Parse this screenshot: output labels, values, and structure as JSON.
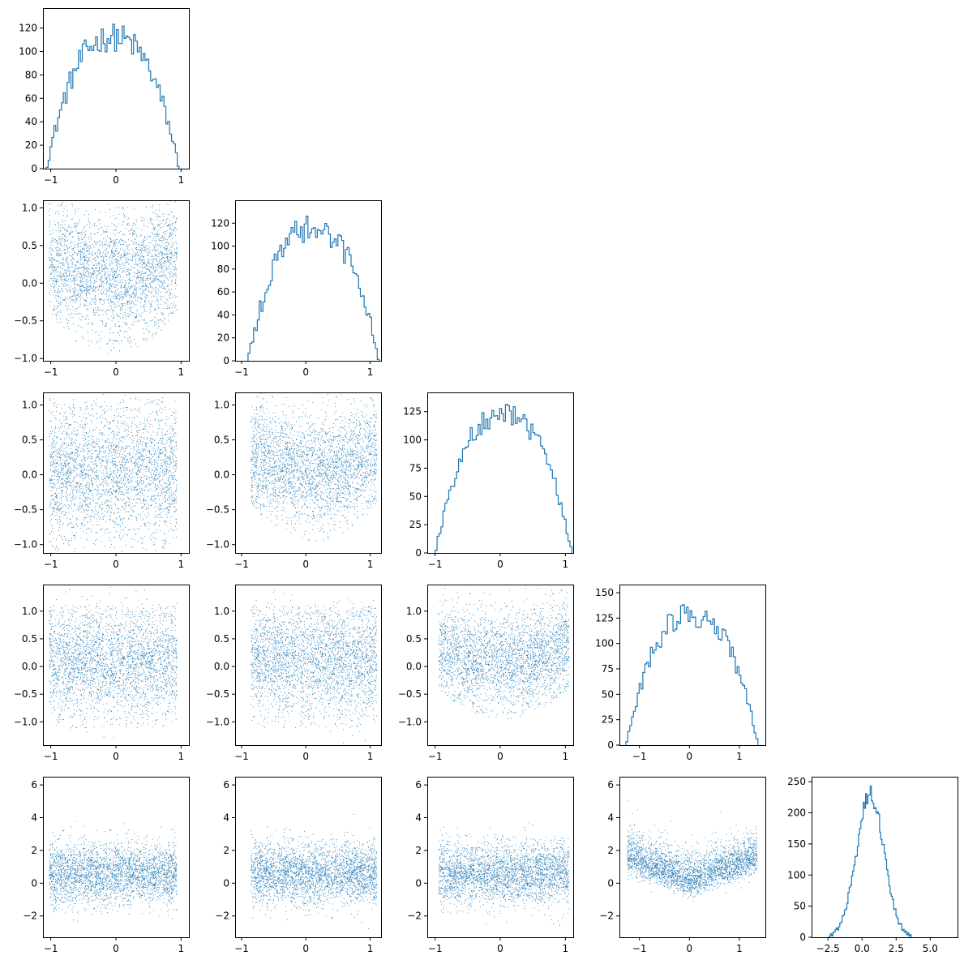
{
  "colors": {
    "series": "#1f77b4",
    "frame": "#000000"
  },
  "chart_data": [
    {
      "type": "histogram",
      "row": 0,
      "col": 0,
      "xlim": [
        -1.12,
        1.12
      ],
      "ylim": [
        0,
        137
      ],
      "xticks": [
        -1,
        0,
        1
      ],
      "xtick_labels": [
        "−1",
        "0",
        "1"
      ],
      "yticks": [
        0,
        20,
        40,
        60,
        80,
        100,
        120
      ],
      "ytick_labels": [
        "0",
        "20",
        "40",
        "60",
        "80",
        "100",
        "120"
      ],
      "dist": {
        "center": -0.05,
        "halfwidth": 1.02,
        "peak": 112,
        "noise": 12
      }
    },
    {
      "type": "scatter",
      "row": 1,
      "col": 0,
      "xlim": [
        -1.12,
        1.12
      ],
      "ylim": [
        -1.03,
        1.1
      ],
      "xticks": [
        -1,
        0,
        1
      ],
      "xtick_labels": [
        "−1",
        "0",
        "1"
      ],
      "yticks": [
        -1,
        -0.5,
        0,
        0.5,
        1
      ],
      "ytick_labels": [
        "−1.0",
        "−0.5",
        "0.0",
        "0.5",
        "1.0"
      ],
      "points": {
        "n": 3000,
        "x_center": -0.05,
        "x_half": 0.98,
        "y_center": 0.1,
        "y_spread": 0.48,
        "mode": "cup"
      }
    },
    {
      "type": "histogram",
      "row": 1,
      "col": 1,
      "xlim": [
        -1.1,
        1.17
      ],
      "ylim": [
        0,
        140
      ],
      "xticks": [
        -1,
        0,
        1
      ],
      "xtick_labels": [
        "−1",
        "0",
        "1"
      ],
      "yticks": [
        0,
        20,
        40,
        60,
        80,
        100,
        120
      ],
      "ytick_labels": [
        "0",
        "20",
        "40",
        "60",
        "80",
        "100",
        "120"
      ],
      "dist": {
        "center": 0.12,
        "halfwidth": 1.02,
        "peak": 115,
        "noise": 12
      }
    },
    {
      "type": "scatter",
      "row": 2,
      "col": 0,
      "xlim": [
        -1.12,
        1.12
      ],
      "ylim": [
        -1.12,
        1.18
      ],
      "xticks": [
        -1,
        0,
        1
      ],
      "xtick_labels": [
        "−1",
        "0",
        "1"
      ],
      "yticks": [
        -1,
        -0.5,
        0,
        0.5,
        1
      ],
      "ytick_labels": [
        "−1.0",
        "−0.5",
        "0.0",
        "0.5",
        "1.0"
      ],
      "points": {
        "n": 3000,
        "x_center": -0.05,
        "x_half": 0.98,
        "y_center": 0.05,
        "y_spread": 0.48,
        "mode": "disc"
      }
    },
    {
      "type": "scatter",
      "row": 2,
      "col": 1,
      "xlim": [
        -1.1,
        1.17
      ],
      "ylim": [
        -1.12,
        1.18
      ],
      "xticks": [
        -1,
        0,
        1
      ],
      "xtick_labels": [
        "−1",
        "0",
        "1"
      ],
      "yticks": [
        -1,
        -0.5,
        0,
        0.5,
        1
      ],
      "ytick_labels": [
        "−1.0",
        "−0.5",
        "0.0",
        "0.5",
        "1.0"
      ],
      "points": {
        "n": 3000,
        "x_center": 0.12,
        "x_half": 0.98,
        "y_center": 0.05,
        "y_spread": 0.48,
        "mode": "cup"
      }
    },
    {
      "type": "histogram",
      "row": 2,
      "col": 2,
      "xlim": [
        -1.12,
        1.12
      ],
      "ylim": [
        0,
        142
      ],
      "xticks": [
        -1,
        0,
        1
      ],
      "xtick_labels": [
        "−1",
        "0",
        "1"
      ],
      "yticks": [
        0,
        25,
        50,
        75,
        100,
        125
      ],
      "ytick_labels": [
        "0",
        "25",
        "50",
        "75",
        "100",
        "125"
      ],
      "dist": {
        "center": 0.05,
        "halfwidth": 1.05,
        "peak": 122,
        "noise": 10
      }
    },
    {
      "type": "scatter",
      "row": 3,
      "col": 0,
      "xlim": [
        -1.12,
        1.12
      ],
      "ylim": [
        -1.42,
        1.48
      ],
      "xticks": [
        -1,
        0,
        1
      ],
      "xtick_labels": [
        "−1",
        "0",
        "1"
      ],
      "yticks": [
        -1,
        -0.5,
        0,
        0.5,
        1
      ],
      "ytick_labels": [
        "−1.0",
        "−0.5",
        "0.0",
        "0.5",
        "1.0"
      ],
      "points": {
        "n": 3000,
        "x_center": -0.05,
        "x_half": 0.98,
        "y_center": 0.1,
        "y_spread": 0.52,
        "mode": "disc"
      }
    },
    {
      "type": "scatter",
      "row": 3,
      "col": 1,
      "xlim": [
        -1.1,
        1.17
      ],
      "ylim": [
        -1.42,
        1.48
      ],
      "xticks": [
        -1,
        0,
        1
      ],
      "xtick_labels": [
        "−1",
        "0",
        "1"
      ],
      "yticks": [
        -1,
        -0.5,
        0,
        0.5,
        1
      ],
      "ytick_labels": [
        "−1.0",
        "−0.5",
        "0.0",
        "0.5",
        "1.0"
      ],
      "points": {
        "n": 3000,
        "x_center": 0.12,
        "x_half": 0.98,
        "y_center": 0.1,
        "y_spread": 0.52,
        "mode": "disc"
      }
    },
    {
      "type": "scatter",
      "row": 3,
      "col": 2,
      "xlim": [
        -1.12,
        1.12
      ],
      "ylim": [
        -1.42,
        1.48
      ],
      "xticks": [
        -1,
        0,
        1
      ],
      "xtick_labels": [
        "−1",
        "0",
        "1"
      ],
      "yticks": [
        -1,
        -0.5,
        0,
        0.5,
        1
      ],
      "ytick_labels": [
        "−1.0",
        "−0.5",
        "0.0",
        "0.5",
        "1.0"
      ],
      "points": {
        "n": 3000,
        "x_center": 0.05,
        "x_half": 1.0,
        "y_center": 0.1,
        "y_spread": 0.52,
        "mode": "cup"
      }
    },
    {
      "type": "histogram",
      "row": 3,
      "col": 3,
      "xlim": [
        -1.4,
        1.52
      ],
      "ylim": [
        0,
        158
      ],
      "xticks": [
        -1,
        0,
        1
      ],
      "xtick_labels": [
        "−1",
        "0",
        "1"
      ],
      "yticks": [
        0,
        25,
        50,
        75,
        100,
        125,
        150
      ],
      "ytick_labels": [
        "0",
        "25",
        "50",
        "75",
        "100",
        "125",
        "150"
      ],
      "dist": {
        "center": 0.05,
        "halfwidth": 1.32,
        "peak": 128,
        "noise": 12
      }
    },
    {
      "type": "scatter",
      "row": 4,
      "col": 0,
      "xlim": [
        -1.12,
        1.12
      ],
      "ylim": [
        -3.3,
        6.5
      ],
      "xticks": [
        -1,
        0,
        1
      ],
      "xtick_labels": [
        "−1",
        "0",
        "1"
      ],
      "yticks": [
        -2,
        0,
        2,
        4,
        6
      ],
      "ytick_labels": [
        "−2",
        "0",
        "2",
        "4",
        "6"
      ],
      "points": {
        "n": 3000,
        "x_center": -0.05,
        "x_half": 0.98,
        "y_center": 0.6,
        "y_spread": 0.95,
        "mode": "gauss"
      }
    },
    {
      "type": "scatter",
      "row": 4,
      "col": 1,
      "xlim": [
        -1.1,
        1.17
      ],
      "ylim": [
        -3.3,
        6.5
      ],
      "xticks": [
        -1,
        0,
        1
      ],
      "xtick_labels": [
        "−1",
        "0",
        "1"
      ],
      "yticks": [
        -2,
        0,
        2,
        4,
        6
      ],
      "ytick_labels": [
        "−2",
        "0",
        "2",
        "4",
        "6"
      ],
      "points": {
        "n": 3000,
        "x_center": 0.12,
        "x_half": 0.98,
        "y_center": 0.6,
        "y_spread": 0.95,
        "mode": "gauss"
      }
    },
    {
      "type": "scatter",
      "row": 4,
      "col": 2,
      "xlim": [
        -1.12,
        1.12
      ],
      "ylim": [
        -3.3,
        6.5
      ],
      "xticks": [
        -1,
        0,
        1
      ],
      "xtick_labels": [
        "−1",
        "0",
        "1"
      ],
      "yticks": [
        -2,
        0,
        2,
        4,
        6
      ],
      "ytick_labels": [
        "−2",
        "0",
        "2",
        "4",
        "6"
      ],
      "points": {
        "n": 3000,
        "x_center": 0.05,
        "x_half": 1.0,
        "y_center": 0.6,
        "y_spread": 0.95,
        "mode": "gauss"
      }
    },
    {
      "type": "scatter",
      "row": 4,
      "col": 3,
      "xlim": [
        -1.4,
        1.52
      ],
      "ylim": [
        -3.3,
        6.5
      ],
      "xticks": [
        -1,
        0,
        1
      ],
      "xtick_labels": [
        "−1",
        "0",
        "1"
      ],
      "yticks": [
        -2,
        0,
        2,
        4,
        6
      ],
      "ytick_labels": [
        "−2",
        "0",
        "2",
        "4",
        "6"
      ],
      "points": {
        "n": 3000,
        "x_center": 0.05,
        "x_half": 1.3,
        "y_center": 0.5,
        "y_spread": 0.85,
        "mode": "vshape"
      }
    },
    {
      "type": "histogram",
      "row": 4,
      "col": 4,
      "xlim": [
        -3.7,
        7.0
      ],
      "ylim": [
        0,
        258
      ],
      "xticks": [
        -2.5,
        0,
        2.5,
        5
      ],
      "xtick_labels": [
        "−2.5",
        "0.0",
        "2.5",
        "5.0"
      ],
      "yticks": [
        0,
        50,
        100,
        150,
        200,
        250
      ],
      "ytick_labels": [
        "0",
        "50",
        "100",
        "150",
        "200",
        "250"
      ],
      "dist": {
        "center": 0.6,
        "halfwidth": 3.0,
        "peak": 230,
        "noise": 14,
        "shape": "gauss",
        "sigma": 1.0
      }
    }
  ]
}
